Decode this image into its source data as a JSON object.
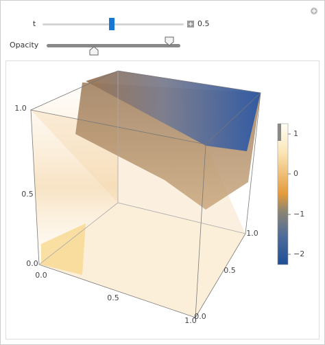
{
  "controls": {
    "t": {
      "label": "t",
      "value": "0.5"
    },
    "opacity": {
      "label": "Opacity"
    }
  },
  "plot": {
    "vertical_axis": {
      "ticks": [
        "1.0",
        "0.5",
        "0.0"
      ]
    },
    "front_axis": {
      "ticks": [
        "0.0",
        "0.5",
        "1.0"
      ]
    },
    "right_axis": {
      "ticks": [
        "1.0",
        "0.5",
        "0.0"
      ]
    },
    "legend": {
      "ticks": [
        "1",
        "0",
        "−1",
        "−2"
      ]
    }
  }
}
